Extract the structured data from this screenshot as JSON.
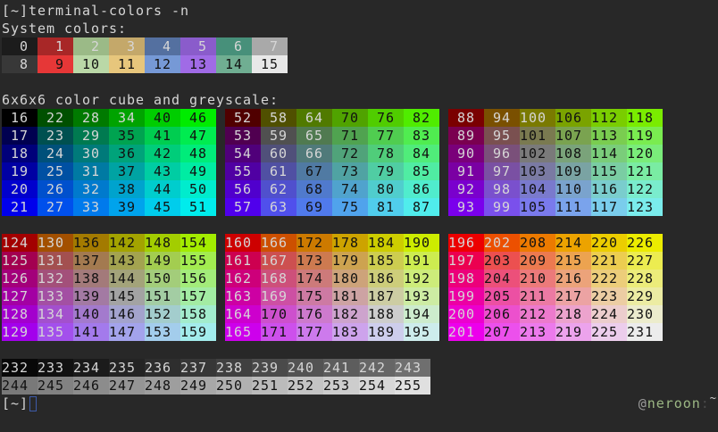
{
  "terminal": {
    "prompt_dir": "[~]",
    "command": "terminal-colors -n",
    "system_label": "System colors:",
    "cube_label": "6x6x6 color cube and greyscale:",
    "final_prompt": "[~]",
    "host": {
      "at": "@",
      "user": "neroon",
      "colon": ":",
      "tilde": "~"
    }
  },
  "colors": {
    "background": "#282828",
    "text_light": "#d6d6d6",
    "text_dark": "#111111",
    "system": [
      "#1c1c1c",
      "#a82727",
      "#9bba87",
      "#c4a86a",
      "#5470a0",
      "#8a5ccb",
      "#47907a",
      "#a9a9a9",
      "#383838",
      "#e63737",
      "#bad8a7",
      "#e7c67c",
      "#7699d6",
      "#a06be6",
      "#70ae92",
      "#e8e8e8"
    ],
    "system_light_text": [
      0,
      1,
      2,
      3,
      4,
      5,
      6,
      7,
      8
    ],
    "cube_levels": [
      0,
      80,
      122,
      163,
      205,
      236
    ],
    "cube_light_text_ranges": [
      [
        16,
        34
      ],
      [
        52,
        66
      ],
      [
        88,
        100
      ],
      [
        124,
        135
      ],
      [
        160,
        169
      ],
      [
        196,
        202
      ]
    ],
    "grey_start": 8,
    "grey_step": 9.4,
    "grey_light_text_max": 243
  }
}
